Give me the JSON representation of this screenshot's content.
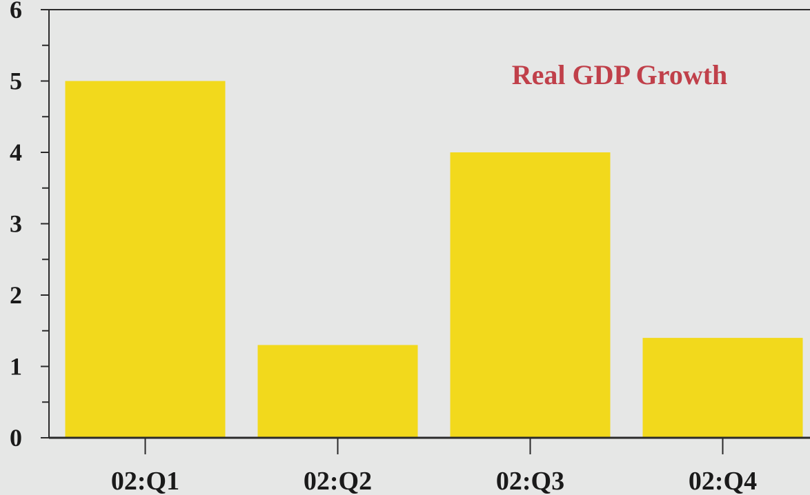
{
  "colors": {
    "background": "#e6e7e6",
    "bar": "#f2d91c",
    "axis": "#2a2a2a",
    "title": "#c0404a"
  },
  "chart_data": {
    "type": "bar",
    "title": "Real GDP Growth",
    "xlabel": "",
    "ylabel": "",
    "categories": [
      "02:Q1",
      "02:Q2",
      "02:Q3",
      "02:Q4"
    ],
    "values": [
      5.0,
      1.3,
      4.0,
      1.4
    ],
    "ylim": [
      0,
      6
    ],
    "yticks": [
      "0",
      "1",
      "2",
      "3",
      "4",
      "5",
      "6"
    ],
    "grid": false,
    "legend": "none"
  }
}
